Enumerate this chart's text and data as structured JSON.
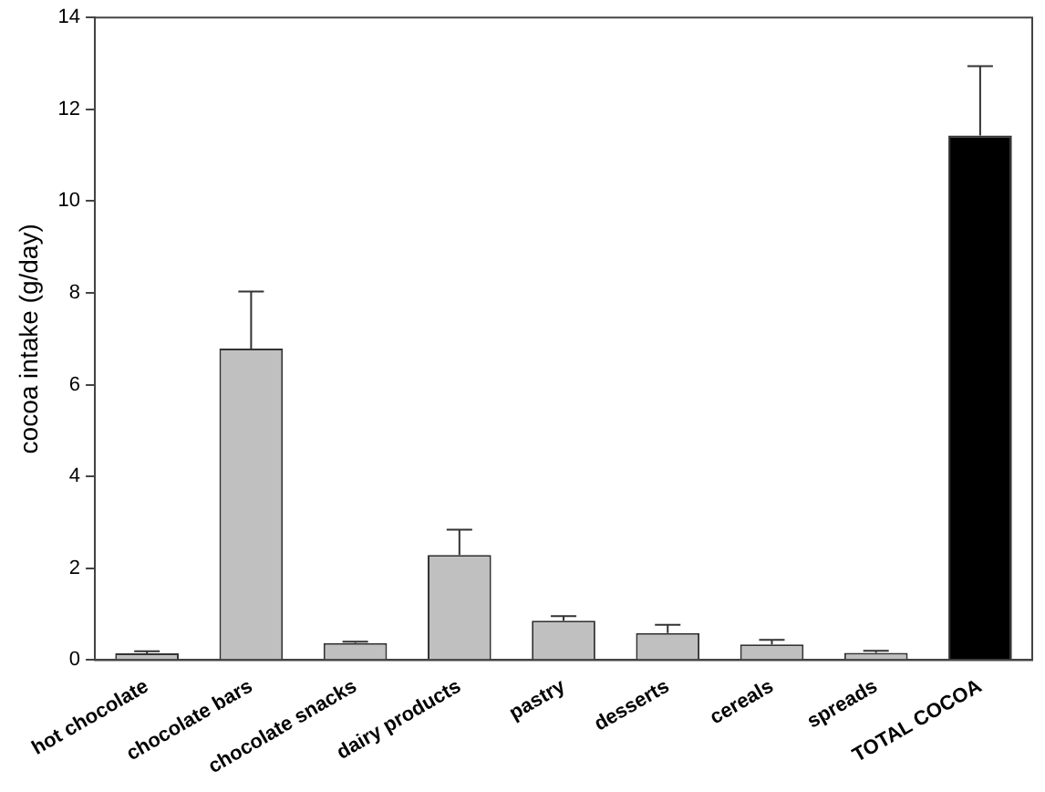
{
  "chart_data": {
    "type": "bar",
    "ylabel": "cocoa intake (g/day)",
    "categories": [
      "hot chocolate",
      "chocolate bars",
      "chocolate snacks",
      "dairy products",
      "pastry",
      "desserts",
      "cereals",
      "spreads",
      "TOTAL COCOA"
    ],
    "values": [
      0.15,
      6.79,
      0.37,
      2.29,
      0.86,
      0.59,
      0.34,
      0.16,
      11.43
    ],
    "colors": [
      "#c0c0c0",
      "#c0c0c0",
      "#c0c0c0",
      "#c0c0c0",
      "#c0c0c0",
      "#c0c0c0",
      "#c0c0c0",
      "#c0c0c0",
      "#000000"
    ],
    "errors": [
      [
        0.15,
        0.19
      ],
      [
        6.79,
        8.03
      ],
      [
        0.37,
        0.4
      ],
      [
        2.29,
        2.84
      ],
      [
        0.86,
        0.96
      ],
      [
        0.59,
        0.77
      ],
      [
        0.34,
        0.44
      ],
      [
        0.16,
        0.2
      ],
      [
        11.43,
        12.94
      ]
    ],
    "ylim": [
      0,
      14
    ],
    "yticks": [
      0,
      2,
      4,
      6,
      8,
      10,
      12,
      14
    ],
    "grid": false,
    "legend": false
  }
}
